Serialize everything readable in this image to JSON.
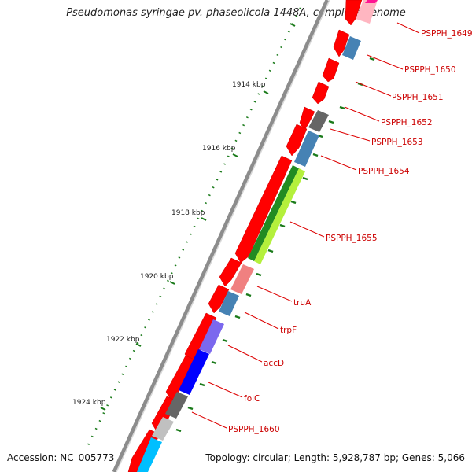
{
  "title": "Pseudomonas syringae pv. phaseolicola 1448A, complete genome",
  "accession": "Accession: NC_005773",
  "summary": "Topology: circular; Length: 5,928,787 bp; Genes: 5,066",
  "scale_labels": [
    "1914 kbp",
    "1916 kbp",
    "1918 kbp",
    "1920 kbp",
    "1922 kbp",
    "1924 kbp"
  ],
  "gene_labels": [
    "PSPPH_1649",
    "PSPPH_1650",
    "PSPPH_1651",
    "PSPPH_1652",
    "PSPPH_1653",
    "PSPPH_1654",
    "PSPPH_1655",
    "truA",
    "trpF",
    "accD",
    "folC",
    "PSPPH_1660"
  ],
  "colors": {
    "cds": "#ff0000",
    "label": "#cc0000",
    "backbone": "#808080",
    "tick": "#1a7a1a",
    "cog_slate": "#4682b4",
    "cog_gray": "#666666",
    "cog_green": "#228b22",
    "cog_lime": "#b4f03c",
    "cog_pink": "#f08080",
    "cog_purple": "#7b68ee",
    "cog_blue": "#0000ff",
    "cog_lightgray": "#c0c0c0",
    "cog_cyan": "#00bfff",
    "cog_magenta": "#ff1493",
    "cog_lightpink": "#ffb6c1"
  }
}
